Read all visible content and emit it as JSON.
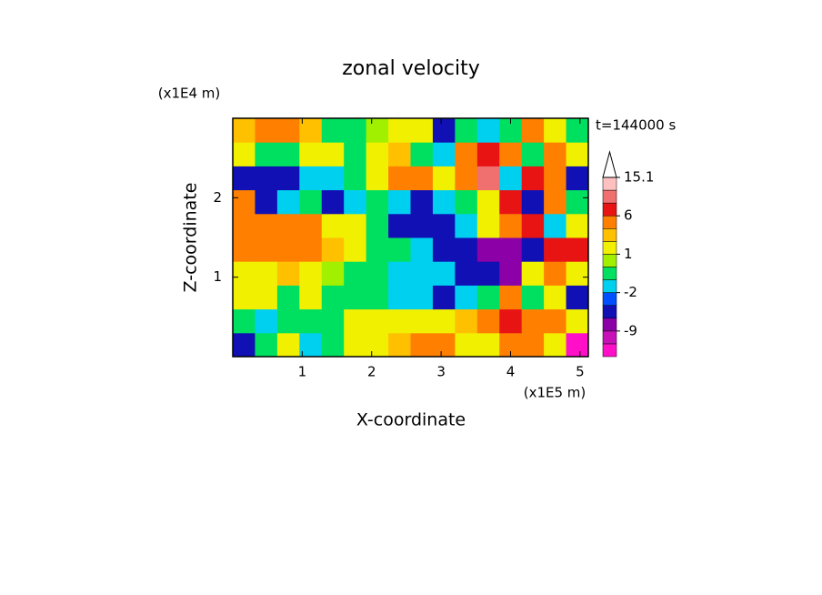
{
  "chart_data": {
    "type": "filled-contour",
    "title": "zonal velocity",
    "xlabel": "X-coordinate",
    "ylabel": "Z-coordinate",
    "x_unit": "(x1E5 m)",
    "y_unit": "(x1E4 m)",
    "annotation": "t=144000 s",
    "xlim": [
      0,
      5.12
    ],
    "ylim": [
      0,
      3
    ],
    "xticks": [
      1,
      2,
      3,
      4,
      5
    ],
    "yticks": [
      1,
      2
    ],
    "x": [
      0.16,
      0.48,
      0.8,
      1.12,
      1.44,
      1.76,
      2.08,
      2.4,
      2.72,
      3.04,
      3.36,
      3.68,
      4.0,
      4.32,
      4.64,
      4.96
    ],
    "y": [
      0.15,
      0.45,
      0.75,
      1.05,
      1.35,
      1.65,
      1.95,
      2.25,
      2.55,
      2.85
    ],
    "z": [
      [
        -4,
        -0.5,
        1.5,
        -1.5,
        -0.5,
        1.5,
        1.5,
        2.5,
        4.5,
        4.5,
        1.5,
        1.5,
        4.5,
        4.5,
        1.5,
        -14
      ],
      [
        -0.5,
        -1.5,
        -0.5,
        -0.5,
        -0.5,
        1.5,
        1.5,
        1.5,
        1.5,
        1.5,
        2.5,
        4.5,
        7.5,
        4.5,
        4.5,
        1.5
      ],
      [
        1.5,
        1.5,
        -0.5,
        1.5,
        -0.5,
        -0.5,
        -0.5,
        -1.5,
        -1.5,
        -4,
        -1.5,
        -0.5,
        4.5,
        -0.5,
        1.5,
        -4
      ],
      [
        1.5,
        1.5,
        2.5,
        1.5,
        0.5,
        -0.5,
        -0.5,
        -1.5,
        -1.5,
        -1.5,
        -4,
        -4,
        -7,
        1.5,
        4.5,
        1.5
      ],
      [
        4.5,
        4.5,
        4.5,
        4.5,
        2.5,
        1.5,
        -0.5,
        -0.5,
        -1.5,
        -4,
        -4,
        -7,
        -7,
        -4,
        7.5,
        7.5
      ],
      [
        4.5,
        4.5,
        4.5,
        4.5,
        1.5,
        1.5,
        -0.5,
        -4,
        -4,
        -4,
        -1.5,
        1.5,
        4.5,
        7.5,
        -1.5,
        1.5
      ],
      [
        4.5,
        -4,
        -1.5,
        -0.5,
        -4,
        -1.5,
        -0.5,
        -1.5,
        -4,
        -1.5,
        -0.5,
        1.5,
        7.5,
        -4,
        4.5,
        -0.5
      ],
      [
        -4,
        -4,
        -4,
        -1.5,
        -1.5,
        -0.5,
        1.5,
        4.5,
        4.5,
        1.5,
        4.5,
        10.5,
        -1.5,
        7.5,
        4.5,
        -4
      ],
      [
        1.5,
        -0.5,
        -0.5,
        1.5,
        1.5,
        -0.5,
        1.5,
        2.5,
        -0.5,
        -1.5,
        4.5,
        7.5,
        4.5,
        -0.5,
        4.5,
        1.5
      ],
      [
        2.5,
        4.5,
        4.5,
        2.5,
        -0.5,
        -0.5,
        0.5,
        1.5,
        1.5,
        -4,
        -0.5,
        -1.5,
        -0.5,
        4.5,
        1.5,
        -0.5
      ]
    ],
    "levels": [
      -12,
      -9,
      -6,
      -3,
      -2,
      -1,
      0,
      1,
      2,
      3,
      6,
      9,
      12,
      15.1
    ],
    "colors": [
      "#ff10c8",
      "#c810b8",
      "#8c00a8",
      "#1010b4",
      "#0050ff",
      "#00d0f0",
      "#00e060",
      "#a0f000",
      "#f0f000",
      "#ffc000",
      "#ff8000",
      "#e81414",
      "#f07070",
      "#ffc0c0",
      "#ffffff"
    ],
    "colorbar_ticks": [
      -9,
      -2,
      1,
      6,
      15.1
    ]
  }
}
